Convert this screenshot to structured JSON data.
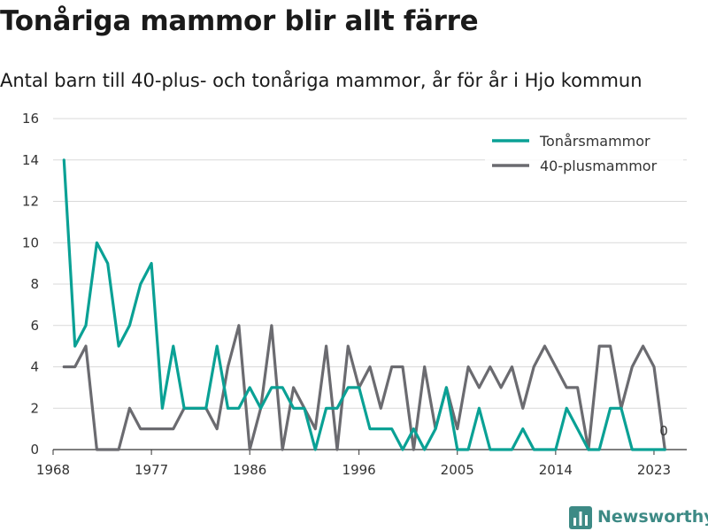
{
  "colors": {
    "teen": "#0aa195",
    "over40": "#6b6b70",
    "grid": "#d9d9d9",
    "brand": "#3d8a85"
  },
  "brand": {
    "name": "Newsworthy",
    "icon": "bar-chart-icon"
  },
  "chart_data": {
    "type": "line",
    "title": "Tonåriga mammor blir allt färre",
    "subtitle": "Antal barn till 40-plus- och tonåriga mammor, år för år i Hjo kommun",
    "xlabel": "",
    "ylabel": "",
    "x": [
      1969,
      1970,
      1971,
      1972,
      1973,
      1974,
      1975,
      1976,
      1977,
      1978,
      1979,
      1980,
      1981,
      1982,
      1983,
      1984,
      1985,
      1986,
      1987,
      1988,
      1989,
      1990,
      1991,
      1992,
      1993,
      1994,
      1995,
      1996,
      1997,
      1998,
      1999,
      2000,
      2001,
      2002,
      2003,
      2004,
      2005,
      2006,
      2007,
      2008,
      2009,
      2010,
      2011,
      2012,
      2013,
      2014,
      2015,
      2016,
      2017,
      2018,
      2019,
      2020,
      2021,
      2022,
      2023,
      2024
    ],
    "x_ticks": [
      1968,
      1977,
      1986,
      1996,
      2005,
      2014,
      2023
    ],
    "xlim": [
      1968,
      2026
    ],
    "y_ticks": [
      0,
      2,
      4,
      6,
      8,
      10,
      12,
      14,
      16
    ],
    "ylim": [
      0,
      16
    ],
    "grid": true,
    "legend_position": "top-right",
    "series": [
      {
        "name": "Tonårsmammor",
        "color": "#0aa195",
        "values": [
          14,
          5,
          6,
          10,
          9,
          5,
          6,
          8,
          9,
          2,
          5,
          2,
          2,
          2,
          5,
          2,
          2,
          3,
          2,
          3,
          3,
          2,
          2,
          0,
          2,
          2,
          3,
          3,
          1,
          1,
          1,
          0,
          1,
          0,
          1,
          3,
          0,
          0,
          2,
          0,
          0,
          0,
          1,
          0,
          0,
          0,
          2,
          1,
          0,
          0,
          2,
          2,
          0,
          0,
          0,
          0
        ]
      },
      {
        "name": "40-plusmammor",
        "color": "#6b6b70",
        "values": [
          4,
          4,
          5,
          0,
          0,
          0,
          2,
          1,
          1,
          1,
          1,
          2,
          2,
          2,
          1,
          4,
          6,
          0,
          2,
          6,
          0,
          3,
          2,
          1,
          5,
          0,
          5,
          3,
          4,
          2,
          4,
          4,
          0,
          4,
          1,
          3,
          1,
          4,
          3,
          4,
          3,
          4,
          2,
          4,
          5,
          4,
          3,
          3,
          0,
          5,
          5,
          2,
          4,
          5,
          4,
          0
        ]
      }
    ],
    "end_label": "0"
  }
}
